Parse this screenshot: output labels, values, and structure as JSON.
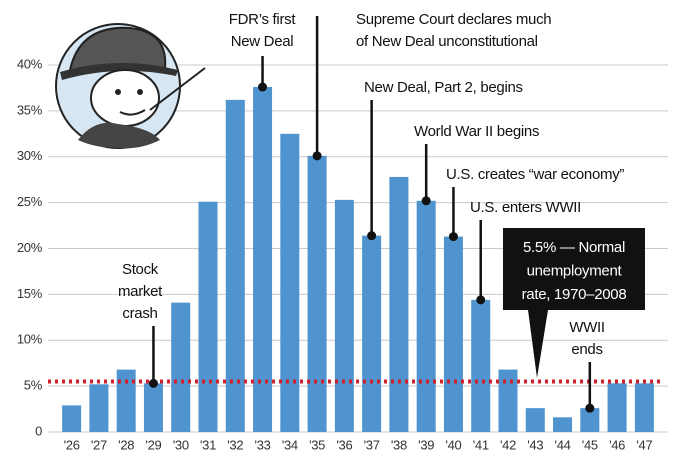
{
  "chart_data": {
    "type": "bar",
    "categories": [
      "'26",
      "'27",
      "'28",
      "'29",
      "'30",
      "'31",
      "'32",
      "'33",
      "'34",
      "'35",
      "'36",
      "'37",
      "'38",
      "'39",
      "'40",
      "'41",
      "'42",
      "'43",
      "'44",
      "'45",
      "'46",
      "'47"
    ],
    "values": [
      2.9,
      5.2,
      6.8,
      5.3,
      14.1,
      25.1,
      36.2,
      37.6,
      32.5,
      30.1,
      25.3,
      21.4,
      27.8,
      25.2,
      21.3,
      14.4,
      6.8,
      2.6,
      1.6,
      2.6,
      5.3,
      5.3
    ],
    "color": "#4f93cf",
    "ylim": [
      0,
      40
    ],
    "yticks": [
      0,
      {
        "value": 5,
        "label": "5%"
      },
      {
        "value": 10,
        "label": "10%"
      },
      {
        "value": 15,
        "label": "15%"
      },
      {
        "value": 20,
        "label": "20%"
      },
      {
        "value": 25,
        "label": "25%"
      },
      {
        "value": 30,
        "label": "30%"
      },
      {
        "value": 35,
        "label": "35%"
      },
      {
        "value": 40,
        "label": "40%"
      }
    ],
    "grid": true,
    "reference_line": {
      "value": 5.5,
      "color": "#d0202a",
      "label_lines": [
        "5.5% — Normal",
        "unemployment",
        "rate, 1970–2008"
      ]
    },
    "annotations": [
      {
        "lines": [
          "FDR’s first",
          "New Deal"
        ]
      },
      {
        "lines": [
          "Supreme Court declares much",
          "of New Deal unconstitutional"
        ]
      },
      {
        "lines": [
          "New Deal, Part 2, begins"
        ]
      },
      {
        "lines": [
          "World War II begins"
        ]
      },
      {
        "lines": [
          "U.S. creates “war economy”"
        ]
      },
      {
        "lines": [
          "U.S. enters WWII"
        ]
      },
      {
        "lines": [
          "Stock",
          "market",
          "crash"
        ]
      },
      {
        "lines": [
          "WWII",
          "ends"
        ]
      }
    ]
  }
}
